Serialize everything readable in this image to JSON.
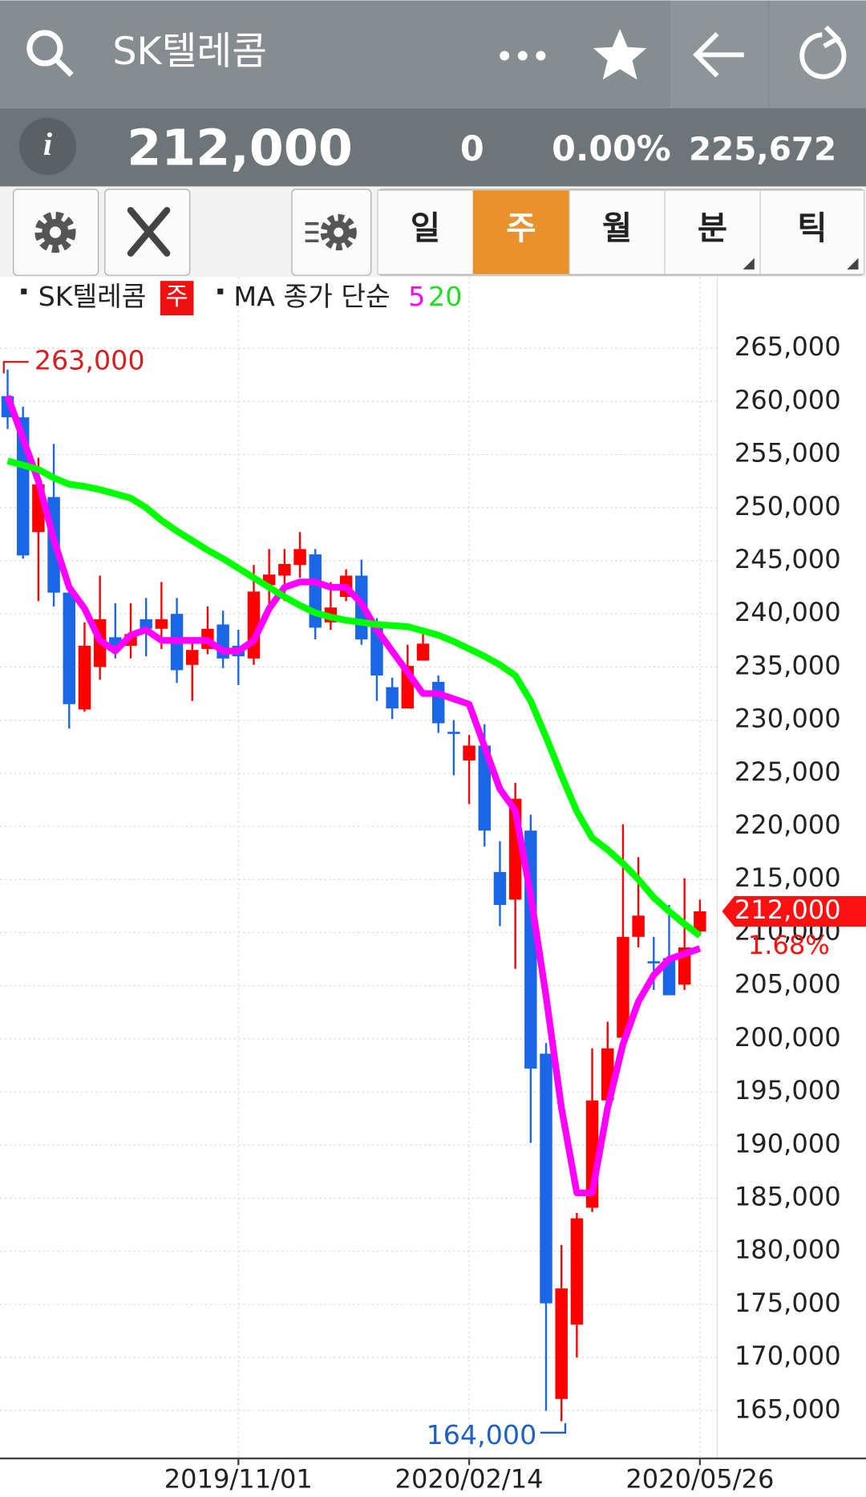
{
  "header": {
    "title": "SK텔레콤",
    "price": "212,000",
    "change": "0",
    "change_pct": "0.00%",
    "volume": "225,672"
  },
  "tabs": [
    "일",
    "주",
    "월",
    "분",
    "틱"
  ],
  "active_tab": 1,
  "chart_data": {
    "type": "candlestick",
    "period": "주",
    "ma_legend_label": "MA 종가 단순",
    "categories": [
      null,
      null,
      null,
      null,
      null,
      null,
      null,
      null,
      null,
      null,
      null,
      null,
      null,
      null,
      null,
      "2019/11/01",
      null,
      null,
      null,
      null,
      null,
      null,
      null,
      null,
      null,
      null,
      null,
      null,
      null,
      null,
      "2020/02/14",
      null,
      null,
      null,
      null,
      null,
      null,
      null,
      null,
      null,
      null,
      null,
      null,
      null,
      null,
      "2020/05/26"
    ],
    "series": [
      {
        "name": "SK텔레콤",
        "up_color": "#ff0000",
        "down_color": "#1a66e6",
        "open": [
          260500,
          258500,
          247700,
          251000,
          242000,
          231000,
          235000,
          237800,
          237000,
          239500,
          238600,
          240000,
          235200,
          236700,
          239000,
          237000,
          235800,
          242700,
          243600,
          244600,
          245600,
          239200,
          241600,
          243600,
          239200,
          233100,
          231100,
          235600,
          233600,
          228900,
          226200,
          227600,
          215700,
          213100,
          219600,
          198600,
          166100,
          173100,
          184100,
          194200,
          200100,
          209600,
          207300,
          207600,
          205100,
          210100
        ],
        "high": [
          263000,
          259500,
          254700,
          256000,
          243000,
          239200,
          243600,
          241000,
          241000,
          241500,
          243000,
          241500,
          237800,
          240700,
          240300,
          238500,
          244600,
          246100,
          246100,
          247700,
          246100,
          243000,
          244200,
          245100,
          239600,
          234000,
          237100,
          238700,
          234200,
          230000,
          228600,
          229600,
          218600,
          224100,
          221100,
          199600,
          180600,
          183600,
          199100,
          201600,
          220200,
          217100,
          209600,
          212600,
          215100,
          213100
        ],
        "low": [
          257400,
          245200,
          241200,
          240700,
          229200,
          230800,
          233800,
          235800,
          235800,
          236000,
          236700,
          233500,
          231800,
          236200,
          234900,
          233300,
          235200,
          240700,
          241200,
          243400,
          237600,
          238500,
          241200,
          237100,
          231800,
          230100,
          231100,
          235600,
          228800,
          224800,
          222100,
          218100,
          210600,
          206600,
          190200,
          165000,
          164000,
          170000,
          183700,
          193100,
          200100,
          208600,
          204600,
          204100,
          204600,
          209700
        ],
        "close": [
          258500,
          245500,
          252200,
          242000,
          231500,
          237000,
          239500,
          237000,
          238100,
          238600,
          239500,
          234700,
          236600,
          238600,
          235800,
          236000,
          242100,
          243700,
          244700,
          246100,
          238700,
          240600,
          243600,
          237600,
          234200,
          231100,
          235100,
          237200,
          229700,
          228700,
          227600,
          219600,
          212600,
          222600,
          197200,
          175100,
          176500,
          183100,
          194200,
          199100,
          209600,
          211600,
          207100,
          204100,
          208600,
          212000
        ]
      },
      {
        "name": "5",
        "color": "#ff00ff",
        "values": [
          260500,
          256500,
          252500,
          247000,
          242500,
          240500,
          237500,
          236500,
          238000,
          238500,
          237500,
          237500,
          237500,
          237500,
          236500,
          236500,
          237500,
          240500,
          242500,
          243000,
          243000,
          242500,
          242500,
          241000,
          238500,
          236500,
          234500,
          232500,
          232500,
          232000,
          231500,
          227500,
          223500,
          221500,
          213500,
          204000,
          193500,
          185500,
          185500,
          193500,
          199500,
          203500,
          206000,
          207500,
          208000,
          208500
        ]
      },
      {
        "name": "20",
        "color": "#00ff00",
        "values": [
          254400,
          254000,
          253600,
          252800,
          252200,
          252000,
          251700,
          251300,
          250900,
          250000,
          248800,
          247800,
          246900,
          246000,
          245200,
          244300,
          243400,
          242500,
          241600,
          240800,
          240100,
          239700,
          239400,
          239200,
          239000,
          238900,
          238800,
          238400,
          238000,
          237400,
          236700,
          236000,
          235200,
          234200,
          231800,
          228400,
          224800,
          221400,
          218900,
          217800,
          216500,
          215000,
          213300,
          212000,
          210800,
          209700
        ]
      }
    ],
    "ylim": [
      160500,
      271700
    ],
    "yticks": [
      {
        "value": 165000,
        "label": "165,000"
      },
      {
        "value": 170000,
        "label": "170,000"
      },
      {
        "value": 175000,
        "label": "175,000"
      },
      {
        "value": 180000,
        "label": "180,000"
      },
      {
        "value": 185000,
        "label": "185,000"
      },
      {
        "value": 190000,
        "label": "190,000"
      },
      {
        "value": 195000,
        "label": "195,000"
      },
      {
        "value": 200000,
        "label": "200,000"
      },
      {
        "value": 205000,
        "label": "205,000"
      },
      {
        "value": 210000,
        "label": "210,000"
      },
      {
        "value": 215000,
        "label": "215,000"
      },
      {
        "value": 220000,
        "label": "220,000"
      },
      {
        "value": 225000,
        "label": "225,000"
      },
      {
        "value": 230000,
        "label": "230,000"
      },
      {
        "value": 235000,
        "label": "235,000"
      },
      {
        "value": 240000,
        "label": "240,000"
      },
      {
        "value": 245000,
        "label": "245,000"
      },
      {
        "value": 250000,
        "label": "250,000"
      },
      {
        "value": 255000,
        "label": "255,000"
      },
      {
        "value": 260000,
        "label": "260,000"
      },
      {
        "value": 265000,
        "label": "265,000"
      }
    ],
    "grid": true,
    "max_marker": {
      "value": 263000,
      "label": "263,000",
      "color": "#d42020"
    },
    "min_marker": {
      "value": 164000,
      "label": "164,000",
      "color": "#2060c0"
    },
    "last_price": {
      "value": 212000,
      "label": "212,000",
      "color": "#ff1010"
    },
    "last_change": "1.68%"
  }
}
